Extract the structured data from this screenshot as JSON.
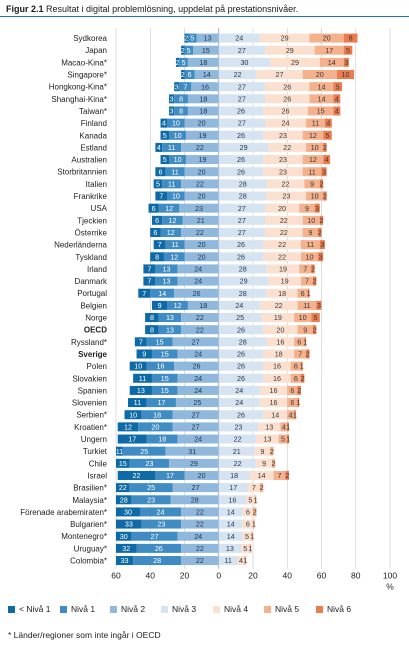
{
  "figure": {
    "label": "Figur 2.1",
    "title": "Resultat i digital problemlösning, uppdelat på prestationsnivåer."
  },
  "chart_data": {
    "type": "bar",
    "stacked": true,
    "orientation": "horizontal",
    "xlim": [
      -60,
      100
    ],
    "xticks": [
      "60",
      "40",
      "20",
      "0",
      "20",
      "40",
      "60",
      "80",
      "100"
    ],
    "xunit": "%",
    "grid": true,
    "legend_position": "bottom",
    "series": [
      {
        "name": "< Nivå 1",
        "color": "#0c6aa6"
      },
      {
        "name": "Nivå 1",
        "color": "#3f8cc4"
      },
      {
        "name": "Nivå 2",
        "color": "#8fb8dc"
      },
      {
        "name": "Nivå 3",
        "color": "#d6e4f2"
      },
      {
        "name": "Nivå 4",
        "color": "#fbe0cf"
      },
      {
        "name": "Nivå 5",
        "color": "#f5b08c"
      },
      {
        "name": "Nivå 6",
        "color": "#ec7c4e"
      }
    ],
    "rows": [
      {
        "label": "Sydkorea",
        "bold": false,
        "values": [
          2,
          5,
          13,
          24,
          29,
          20,
          8
        ]
      },
      {
        "label": "Japan",
        "bold": false,
        "values": [
          2,
          5,
          15,
          27,
          29,
          17,
          5
        ]
      },
      {
        "label": "Macao-Kina*",
        "bold": false,
        "values": [
          2,
          5,
          18,
          30,
          29,
          14,
          3
        ]
      },
      {
        "label": "Singapore*",
        "bold": false,
        "values": [
          2,
          6,
          14,
          22,
          27,
          20,
          10
        ]
      },
      {
        "label": "Hongkong-Kina*",
        "bold": false,
        "values": [
          3,
          7,
          16,
          27,
          26,
          14,
          5
        ]
      },
      {
        "label": "Shanghai-Kina*",
        "bold": false,
        "values": [
          3,
          8,
          18,
          27,
          26,
          14,
          4
        ]
      },
      {
        "label": "Taiwan*",
        "bold": false,
        "values": [
          3,
          8,
          18,
          26,
          26,
          15,
          4
        ]
      },
      {
        "label": "Finland",
        "bold": false,
        "values": [
          4,
          10,
          20,
          27,
          24,
          11,
          4
        ]
      },
      {
        "label": "Kanada",
        "bold": false,
        "values": [
          5,
          10,
          19,
          26,
          23,
          12,
          5
        ]
      },
      {
        "label": "Estland",
        "bold": false,
        "values": [
          4,
          11,
          22,
          29,
          22,
          10,
          2
        ]
      },
      {
        "label": "Australien",
        "bold": false,
        "values": [
          5,
          10,
          19,
          26,
          23,
          12,
          4
        ]
      },
      {
        "label": "Storbritannien",
        "bold": false,
        "values": [
          6,
          11,
          20,
          26,
          23,
          11,
          3
        ]
      },
      {
        "label": "Italien",
        "bold": false,
        "values": [
          5,
          11,
          22,
          28,
          22,
          9,
          2
        ]
      },
      {
        "label": "Frankrike",
        "bold": false,
        "values": [
          7,
          10,
          20,
          28,
          23,
          10,
          2
        ]
      },
      {
        "label": "USA",
        "bold": false,
        "values": [
          6,
          12,
          23,
          27,
          20,
          9,
          3
        ]
      },
      {
        "label": "Tjeckien",
        "bold": false,
        "values": [
          6,
          12,
          21,
          27,
          22,
          10,
          2
        ]
      },
      {
        "label": "Österrike",
        "bold": false,
        "values": [
          6,
          12,
          22,
          27,
          22,
          9,
          2
        ]
      },
      {
        "label": "Nederländerna",
        "bold": false,
        "values": [
          7,
          11,
          20,
          26,
          22,
          11,
          3
        ]
      },
      {
        "label": "Tyskland",
        "bold": false,
        "values": [
          8,
          12,
          20,
          26,
          22,
          10,
          3
        ]
      },
      {
        "label": "Irland",
        "bold": false,
        "values": [
          7,
          13,
          24,
          28,
          19,
          7,
          2
        ]
      },
      {
        "label": "Danmark",
        "bold": false,
        "values": [
          7,
          13,
          24,
          29,
          19,
          7,
          2
        ]
      },
      {
        "label": "Portugal",
        "bold": false,
        "values": [
          7,
          14,
          26,
          28,
          18,
          6,
          1
        ]
      },
      {
        "label": "Belgien",
        "bold": false,
        "values": [
          9,
          12,
          18,
          24,
          22,
          11,
          3
        ]
      },
      {
        "label": "Norge",
        "bold": false,
        "values": [
          8,
          13,
          22,
          25,
          19,
          10,
          5
        ]
      },
      {
        "label": "OECD",
        "bold": true,
        "values": [
          8,
          13,
          22,
          26,
          20,
          9,
          2
        ]
      },
      {
        "label": "Ryssland*",
        "bold": false,
        "values": [
          7,
          15,
          27,
          28,
          16,
          6,
          1
        ]
      },
      {
        "label": "Sverige",
        "bold": true,
        "values": [
          9,
          15,
          24,
          26,
          18,
          7,
          2
        ]
      },
      {
        "label": "Polen",
        "bold": false,
        "values": [
          10,
          16,
          26,
          26,
          16,
          6,
          1
        ]
      },
      {
        "label": "Slovakien",
        "bold": false,
        "values": [
          11,
          15,
          24,
          26,
          16,
          6,
          2
        ]
      },
      {
        "label": "Spanien",
        "bold": false,
        "values": [
          13,
          15,
          24,
          24,
          16,
          6,
          2
        ]
      },
      {
        "label": "Slovenien",
        "bold": false,
        "values": [
          11,
          17,
          25,
          24,
          16,
          6,
          1
        ]
      },
      {
        "label": "Serbien*",
        "bold": false,
        "values": [
          10,
          18,
          27,
          26,
          14,
          4,
          1
        ]
      },
      {
        "label": "Kroatien*",
        "bold": false,
        "values": [
          12,
          20,
          27,
          23,
          13,
          4,
          1
        ]
      },
      {
        "label": "Ungern",
        "bold": false,
        "values": [
          17,
          18,
          24,
          22,
          13,
          5,
          1
        ]
      },
      {
        "label": "Turkiet",
        "bold": false,
        "values": [
          11,
          25,
          31,
          21,
          9,
          2,
          0
        ]
      },
      {
        "label": "Chile",
        "bold": false,
        "values": [
          15,
          23,
          29,
          22,
          9,
          2,
          0
        ]
      },
      {
        "label": "Israel",
        "bold": false,
        "values": [
          22,
          17,
          20,
          18,
          14,
          7,
          2
        ]
      },
      {
        "label": "Brasilien*",
        "bold": false,
        "values": [
          22,
          25,
          27,
          17,
          7,
          2,
          0
        ]
      },
      {
        "label": "Malaysia*",
        "bold": false,
        "values": [
          28,
          23,
          28,
          16,
          5,
          1,
          0
        ]
      },
      {
        "label": "Förenade arabemiraten*",
        "bold": false,
        "values": [
          30,
          24,
          22,
          14,
          6,
          2,
          0
        ]
      },
      {
        "label": "Bulgarien*",
        "bold": false,
        "values": [
          33,
          23,
          22,
          14,
          6,
          1,
          0
        ]
      },
      {
        "label": "Montenegro*",
        "bold": false,
        "values": [
          30,
          27,
          24,
          14,
          5,
          1,
          0
        ]
      },
      {
        "label": "Uruguay*",
        "bold": false,
        "values": [
          32,
          26,
          22,
          13,
          5,
          1,
          0
        ]
      },
      {
        "label": "Colombia*",
        "bold": false,
        "values": [
          33,
          28,
          22,
          11,
          4,
          1,
          0
        ]
      }
    ]
  },
  "footnote": "* Länder/regioner som inte ingår i OECD"
}
